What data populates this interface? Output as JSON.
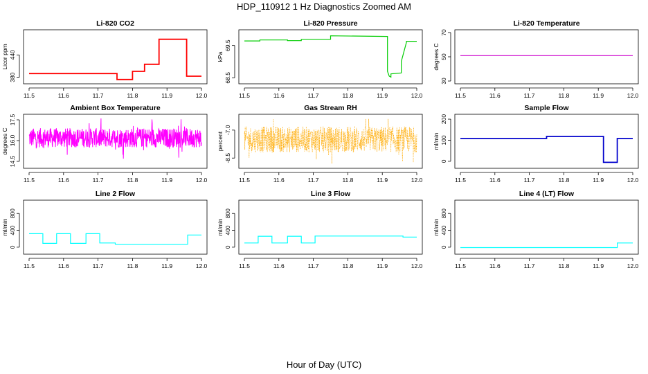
{
  "figure": {
    "title": "HDP_110912  1 Hz Diagnostics Zoomed AM",
    "xlabel": "Hour of Day (UTC)"
  },
  "chart_data": [
    {
      "type": "line",
      "title": "Li-820 CO2",
      "ylabel": "Licor ppm",
      "xlim": [
        11.5,
        12.0
      ],
      "ylim": [
        370,
        500
      ],
      "xticks": [
        "11.5",
        "11.6",
        "11.7",
        "11.8",
        "11.9",
        "12.0"
      ],
      "yticks": [
        "380",
        "440"
      ],
      "color": "#ff0000",
      "x": [
        11.5,
        11.755,
        11.755,
        11.8,
        11.8,
        11.835,
        11.835,
        11.877,
        11.877,
        11.957,
        11.957,
        12.0
      ],
      "y": [
        390,
        390,
        374,
        374,
        396,
        396,
        415,
        415,
        482,
        482,
        383,
        383
      ]
    },
    {
      "type": "line",
      "title": "Li-820 Pressure",
      "ylabel": "kPa",
      "xlim": [
        11.5,
        12.0
      ],
      "ylim": [
        68.4,
        69.9
      ],
      "xticks": [
        "11.5",
        "11.6",
        "11.7",
        "11.8",
        "11.9",
        "12.0"
      ],
      "yticks": [
        "68.5",
        "69.5"
      ],
      "color": "#00cc00",
      "x": [
        11.5,
        11.545,
        11.545,
        11.625,
        11.625,
        11.665,
        11.665,
        11.75,
        11.75,
        11.915,
        11.915,
        11.92,
        11.925,
        11.925,
        11.955,
        11.955,
        11.97,
        11.97,
        12.0
      ],
      "y": [
        69.64,
        69.64,
        69.67,
        69.67,
        69.65,
        69.65,
        69.69,
        69.69,
        69.8,
        69.78,
        68.7,
        68.55,
        68.52,
        68.62,
        68.65,
        69.0,
        69.6,
        69.63,
        69.63
      ]
    },
    {
      "type": "line",
      "title": "Li-820 Temperature",
      "ylabel": "degrees C",
      "xlim": [
        11.5,
        12.0
      ],
      "ylim": [
        30,
        70
      ],
      "xticks": [
        "11.5",
        "11.6",
        "11.7",
        "11.8",
        "11.9",
        "12.0"
      ],
      "yticks": [
        "30",
        "50",
        "70"
      ],
      "color": "#cc00cc",
      "x": [
        11.5,
        12.0
      ],
      "y": [
        51,
        51
      ]
    },
    {
      "type": "line",
      "title": "Ambient Box Temperature",
      "ylabel": "degrees C",
      "xlim": [
        11.5,
        12.0
      ],
      "ylim": [
        14.2,
        17.7
      ],
      "xticks": [
        "11.5",
        "11.6",
        "11.7",
        "11.8",
        "11.9",
        "12.0"
      ],
      "yticks": [
        "14.5",
        "16.0",
        "17.5"
      ],
      "color": "#ff00ff",
      "noise": {
        "center": 16.2,
        "amplitude": 0.7,
        "min": 14.4,
        "max": 17.6
      }
    },
    {
      "type": "scatter",
      "title": "Gas Stream RH",
      "ylabel": "percent",
      "xlim": [
        11.5,
        12.0
      ],
      "ylim": [
        -8.9,
        -6.3
      ],
      "xticks": [
        "11.5",
        "11.6",
        "11.7",
        "11.8",
        "11.9",
        "12.0"
      ],
      "yticks": [
        "-8.5",
        "-7.0"
      ],
      "color": "#ffaa00",
      "noise": {
        "center": -7.5,
        "amplitude": 0.7,
        "min": -8.8,
        "max": -6.4
      }
    },
    {
      "type": "line",
      "title": "Sample Flow",
      "ylabel": "ml/min",
      "xlim": [
        11.5,
        12.0
      ],
      "ylim": [
        -20,
        210
      ],
      "xticks": [
        "11.5",
        "11.6",
        "11.7",
        "11.8",
        "11.9",
        "12.0"
      ],
      "yticks": [
        "0",
        "100",
        "200"
      ],
      "color": "#0000cc",
      "x": [
        11.5,
        11.75,
        11.75,
        11.915,
        11.915,
        11.955,
        11.955,
        12.0
      ],
      "y": [
        108,
        108,
        118,
        118,
        -5,
        -5,
        108,
        108
      ]
    },
    {
      "type": "line",
      "title": "Line 2 Flow",
      "ylabel": "ml/min",
      "xlim": [
        11.5,
        12.0
      ],
      "ylim": [
        -100,
        1050
      ],
      "xticks": [
        "11.5",
        "11.6",
        "11.7",
        "11.8",
        "11.9",
        "12.0"
      ],
      "yticks": [
        "0",
        "400",
        "800"
      ],
      "color": "#00ffff",
      "x": [
        11.5,
        11.54,
        11.54,
        11.58,
        11.58,
        11.62,
        11.62,
        11.665,
        11.665,
        11.705,
        11.705,
        11.75,
        11.75,
        11.96,
        11.96,
        12.0
      ],
      "y": [
        320,
        320,
        90,
        90,
        320,
        320,
        90,
        90,
        320,
        320,
        100,
        100,
        70,
        70,
        290,
        290
      ]
    },
    {
      "type": "line",
      "title": "Line 3 Flow",
      "ylabel": "ml/min",
      "xlim": [
        11.5,
        12.0
      ],
      "ylim": [
        -100,
        1050
      ],
      "xticks": [
        "11.5",
        "11.6",
        "11.7",
        "11.8",
        "11.9",
        "12.0"
      ],
      "yticks": [
        "0",
        "400",
        "800"
      ],
      "color": "#00ffff",
      "x": [
        11.5,
        11.54,
        11.54,
        11.58,
        11.58,
        11.625,
        11.625,
        11.665,
        11.665,
        11.705,
        11.705,
        11.96,
        11.96,
        12.0
      ],
      "y": [
        100,
        100,
        260,
        260,
        100,
        100,
        260,
        260,
        100,
        100,
        265,
        265,
        240,
        240
      ]
    },
    {
      "type": "line",
      "title": "Line 4 (LT) Flow",
      "ylabel": "ml/min",
      "xlim": [
        11.5,
        12.0
      ],
      "ylim": [
        -100,
        1050
      ],
      "xticks": [
        "11.5",
        "11.6",
        "11.7",
        "11.8",
        "11.9",
        "12.0"
      ],
      "yticks": [
        "0",
        "400",
        "800"
      ],
      "color": "#00ffff",
      "x": [
        11.5,
        11.955,
        11.955,
        12.0
      ],
      "y": [
        -10,
        -10,
        100,
        100
      ]
    }
  ]
}
